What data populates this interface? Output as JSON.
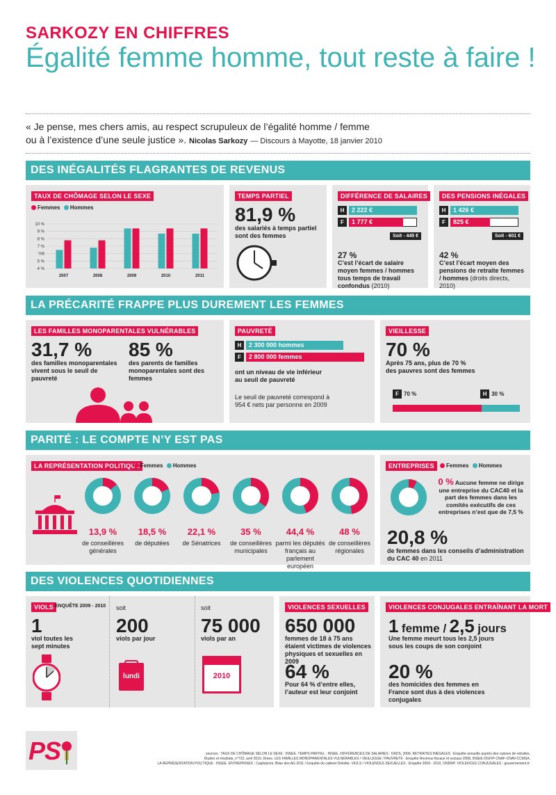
{
  "header": {
    "kicker": "SARKOZY EN CHIFFRES",
    "title": "Égalité femme homme, tout reste à faire !"
  },
  "quote": {
    "line1": "« Je pense, mes chers amis, au respect scrupuleux de l’égalité homme / femme",
    "line2": "ou à l’existence d’une seule justice ».",
    "author": "Nicolas Sarkozy",
    "source": "— Discours à Mayotte, 18 janvier 2010"
  },
  "colors": {
    "red": "#e2134c",
    "teal": "#3fb2b4",
    "grey": "#e6e6e6"
  },
  "sections": {
    "s1": "DES INÉGALITÉS FLAGRANTES DE REVENUS",
    "s2": "LA PRÉCARITÉ FRAPPE PLUS DUREMENT LES FEMMES",
    "s3": "PARITÉ : LE COMPTE N’Y EST PAS",
    "s4": "DES VIOLENCES QUOTIDIENNES"
  },
  "legend": {
    "femmes": "Femmes",
    "hommes": "Hommes"
  },
  "chart_data": {
    "type": "bar",
    "title": "TAUX DE CHÔMAGE SELON LE SEXE",
    "categories": [
      "2007",
      "2008",
      "2009",
      "2010",
      "2011"
    ],
    "series": [
      {
        "name": "Hommes",
        "color": "#3fb2b4",
        "values": [
          6.5,
          6.8,
          9.4,
          8.7,
          8.7
        ]
      },
      {
        "name": "Femmes",
        "color": "#e2134c",
        "values": [
          7.8,
          7.8,
          9.4,
          9.4,
          9.4
        ]
      }
    ],
    "yticks": [
      "10 %",
      "9 %",
      "8 %",
      "7 %",
      "%6",
      "5 %",
      "4 %"
    ],
    "ylim": [
      4,
      10
    ],
    "grid": true
  },
  "temps_partiel": {
    "tag": "TEMPS PARTIEL",
    "value": "81,9 %",
    "text": "des salariés à temps partiel sont des femmes"
  },
  "salaires": {
    "tag": "DIFFÉRENCE DE SALAIRES",
    "h": "H",
    "f": "F",
    "h_val": "2 222 €",
    "f_val": "1 777 €",
    "soit": "Soit - 445 €",
    "pct": "27 %",
    "text1": "C’est l’écart de salaire moyen femmes / hommes tous temps de travail confondus",
    "text2": "(2010)",
    "h_amount": 2222,
    "f_amount": 1777
  },
  "pensions": {
    "tag": "DES PENSIONS INÉGALES",
    "h": "H",
    "f": "F",
    "h_val": "1 426 €",
    "f_val": "825 €",
    "soit": "Soit - 601 €",
    "pct": "42 %",
    "text1": "C’est l’écart moyen des pensions de retraite femmes / hommes",
    "text2": "(droits directs, 2010)",
    "h_amount": 1426,
    "f_amount": 825
  },
  "familles": {
    "tag": "LES FAMILLES MONOPARENTALES VULNÉRABLES",
    "v1": "31,7 %",
    "t1": "des familles monoparentales vivent sous le seuil de pauvreté",
    "v2": "85 %",
    "t2": "des parents de familles monoparentales sont des femmes"
  },
  "pauvrete": {
    "tag": "PAUVRETÉ",
    "h": "H",
    "f": "F",
    "h_val": "2 300 000 hommes",
    "f_val": "2 800 000 femmes",
    "text1": "ont un niveau de vie inférieur au seuil de pauvreté",
    "text2": "Le seuil de pauvreté correspond à 954 € nets par personne en 2009",
    "h_amount": 2300000,
    "f_amount": 2800000
  },
  "vieillesse": {
    "tag": "VIEILLESSE",
    "value": "70 %",
    "text": "Après 75 ans, plus de 70 % des pauvres sont des femmes",
    "f": "F",
    "h": "H",
    "f_pct": "70 %",
    "h_pct": "30 %",
    "f_share": 70
  },
  "representation": {
    "tag": "LA REPRÉSENTATION POLITIQUE",
    "items": [
      {
        "pct": "13,9 %",
        "label": "de conseillères générales",
        "value": 13.9
      },
      {
        "pct": "18,5 %",
        "label": "de députées",
        "value": 18.5
      },
      {
        "pct": "22,1 %",
        "label": "de Sénatrices",
        "value": 22.1
      },
      {
        "pct": "35 %",
        "label": "de conseillères municipales",
        "value": 35
      },
      {
        "pct": "44,4 %",
        "label": "parmi les députés français au parlement européen",
        "value": 44.4
      },
      {
        "pct": "48 %",
        "label": "de conseillères régionales",
        "value": 48
      }
    ]
  },
  "entreprises": {
    "tag": "ENTREPRISES",
    "v1": "0 %",
    "t1a": "Aucune femme",
    "t1b": "ne dirige une entreprise du CAC40 et la part des femmes dans les comités exécutifs de ces entreprises n’est que de 7,5 %",
    "v2": "20,8 %",
    "t2a": "de femmes dans les conseils d’administration du CAC 40",
    "t2b": "en 2011",
    "donut_value": 7.5
  },
  "viols": {
    "tag": "VIOLS",
    "sub": "ENQUÊTE 2009 - 2010",
    "v1": "1",
    "t1": "viol toutes les sept minutes",
    "soit2": "soit",
    "v2": "200",
    "t2": "viols par jour",
    "soit3": "soit",
    "v3": "75 000",
    "t3": "viols par an",
    "lundi": "lundi",
    "annee": "2010"
  },
  "violences_sex": {
    "tag": "VIOLENCES SEXUELLES",
    "v1": "650 000",
    "t1": "femmes de 18 à 75 ans étaient victimes de violences physiques et sexuelles en 2009",
    "v2": "64 %",
    "t2": "Pour 64 % d’entre elles, l’auteur est leur conjoint"
  },
  "violences_conj": {
    "tag": "VIOLENCES CONJUGALES ENTRAÎNANT LA MORT",
    "v1a": "1",
    "v1b": "femme /",
    "v1c": "2,5",
    "v1d": "jours",
    "t1": "Une femme meurt tous les 2,5 jours sous les coups de son conjoint",
    "v2": "20 %",
    "t2": "des homicides des femmes en France sont dus à des violences conjugales"
  },
  "logo": {
    "text": "PS"
  },
  "sources": {
    "line1": "sources : TAUX DE CHÔMAGE SELON LE SEXE : INSEE. TEMPS PARTIEL : INSEE. DIFFÉRENCES DE SALAIRES : DADS, 2009. RETRAITES INÉGALES : Enquête annuelle auprès des caisses de retraites,",
    "line2": "Études et résultats, n°722, avril 2010, Drees. LES FAMILLES MONOPARENTALES VULNÉRABLES / VIEILLESSE / PAUVRETÉ : Enquête Revenus fiscaux et sociaux 2008, INSEE-DGFIP-CNAF-CNAV-CCMSA.",
    "line3": "LA REPRÉSENTATION POLITIQUE : INSEE. ENTREPRISES : Capitalcom, Bilan des AG 2011 / Enquête du cabinet Deloitte. VIOLS / VIOLENCES SEXUELLES : Enquête 2009 - 2010, ONDRP. VIOLENCES CONJUGALES : gouvernement.fr."
  }
}
